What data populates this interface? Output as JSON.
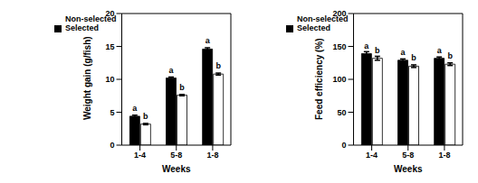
{
  "chart_data": [
    {
      "type": "bar",
      "y_label": "Weight gain (g/fish)",
      "x_label": "Weeks",
      "categories": [
        "1-4",
        "5-8",
        "1-8"
      ],
      "series": [
        {
          "name": "Selected",
          "color": "#000000",
          "values": [
            4.4,
            10.2,
            14.6
          ],
          "errors": [
            0.15,
            0.15,
            0.2
          ],
          "annotations": [
            "a",
            "a",
            "a"
          ]
        },
        {
          "name": "Non-selected",
          "color": "#ffffff",
          "values": [
            3.2,
            7.6,
            10.8
          ],
          "errors": [
            0.1,
            0.1,
            0.15
          ],
          "annotations": [
            "b",
            "b",
            "b"
          ]
        }
      ],
      "ylim": [
        0,
        20
      ],
      "yticks": [
        0,
        5,
        10,
        15,
        20
      ],
      "grid": false,
      "legend": "upper left"
    },
    {
      "type": "bar",
      "y_label": "Feed efficiency (%)",
      "x_label": "Weeks",
      "categories": [
        "1-4",
        "5-8",
        "1-8"
      ],
      "series": [
        {
          "name": "Selected",
          "color": "#000000",
          "values": [
            139,
            129,
            132
          ],
          "errors": [
            3,
            2,
            2
          ],
          "annotations": [
            "a",
            "a",
            "a"
          ]
        },
        {
          "name": "Non-selected",
          "color": "#ffffff",
          "values": [
            132,
            120,
            123
          ],
          "errors": [
            3,
            2,
            2
          ],
          "annotations": [
            "b",
            "b",
            "b"
          ]
        }
      ],
      "ylim": [
        0,
        200
      ],
      "yticks": [
        0,
        50,
        100,
        150,
        200
      ],
      "grid": false,
      "legend": "upper left"
    }
  ]
}
